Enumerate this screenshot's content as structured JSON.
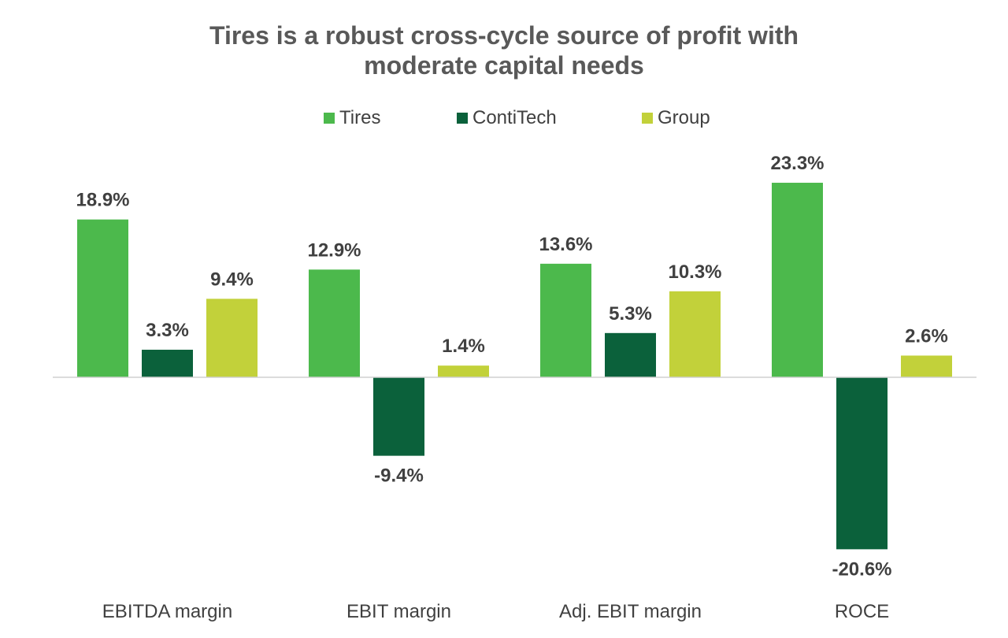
{
  "chart_data": {
    "type": "bar",
    "title_lines": [
      "Tires is a robust cross-cycle source of profit with",
      "moderate capital needs"
    ],
    "categories": [
      "EBITDA margin",
      "EBIT margin",
      "Adj. EBIT margin",
      "ROCE"
    ],
    "series": [
      {
        "name": "Tires",
        "color": "#4cb94c",
        "values": [
          18.9,
          12.9,
          13.6,
          23.3
        ],
        "labels": [
          "18.9%",
          "12.9%",
          "13.6%",
          "23.3%"
        ]
      },
      {
        "name": "ContiTech",
        "color": "#0b613b",
        "values": [
          3.3,
          -9.4,
          5.3,
          -20.6
        ],
        "labels": [
          "3.3%",
          "-9.4%",
          "5.3%",
          "-20.6%"
        ]
      },
      {
        "name": "Group",
        "color": "#c2d13a",
        "values": [
          9.4,
          1.4,
          10.3,
          2.6
        ],
        "labels": [
          "9.4%",
          "1.4%",
          "10.3%",
          "2.6%"
        ]
      }
    ],
    "ylim": [
      -25,
      28
    ],
    "grid": false,
    "legend_position": "top-center",
    "xlabel": "",
    "ylabel": ""
  }
}
